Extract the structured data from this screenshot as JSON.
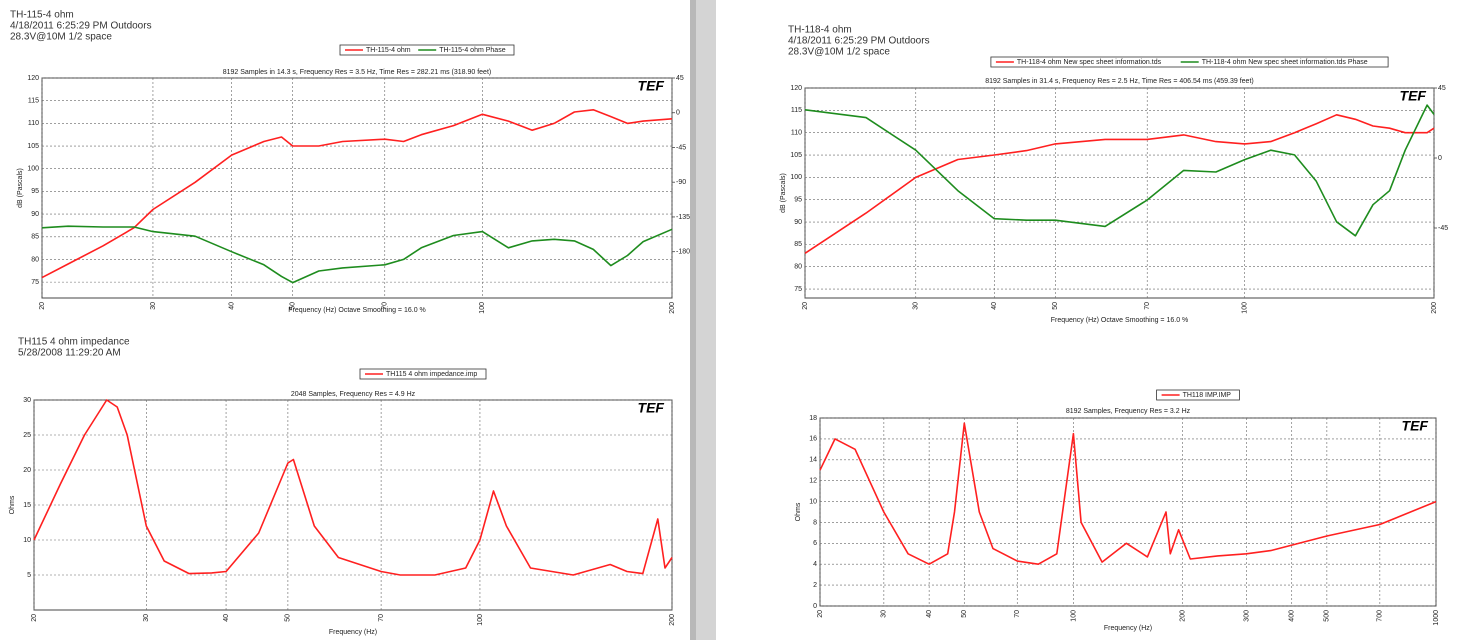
{
  "chart_data": [
    {
      "type": "line",
      "header": [
        "TH-115-4 ohm",
        "4/18/2011 6:25:29 PM    Outdoors",
        "28.3V@10M 1/2 space"
      ],
      "subtitle": "8192 Samples in 14.3 s, Frequency Res = 3.5 Hz, Time Res = 282.21 ms (318.90 feet)",
      "logo": "TEF",
      "xlabel": "Frequency (Hz) Octave Smoothing = 16.0 %",
      "ylabel": "dB (Pascals)",
      "xscale": "log",
      "grid": true,
      "x": [
        20,
        22,
        25,
        28,
        30,
        35,
        40,
        45,
        48,
        50,
        55,
        60,
        70,
        75,
        80,
        90,
        100,
        110,
        120,
        130,
        140,
        150,
        160,
        170,
        180,
        200
      ],
      "xlim": [
        20,
        200
      ],
      "xticks": [
        20,
        30,
        40,
        50,
        70,
        100,
        200
      ],
      "ylim": [
        71.5,
        120
      ],
      "yticks": [
        75,
        80,
        85,
        90,
        95,
        100,
        105,
        110,
        115,
        120
      ],
      "y2lim": [
        -240,
        45
      ],
      "y2ticks": [
        45,
        0,
        -45,
        -90,
        -135,
        -180
      ],
      "series": [
        {
          "name": "TH-115-4 ohm",
          "color": "#ff2020",
          "values": [
            76,
            79,
            83,
            87,
            91,
            97,
            103,
            106,
            107,
            105,
            105,
            106,
            106.5,
            106,
            107.5,
            109.5,
            112,
            110.5,
            108.5,
            110,
            112.5,
            113,
            111.5,
            110,
            110.5,
            111
          ]
        },
        {
          "name": "TH-115-4 ohm Phase",
          "color": "#1e8c1e",
          "axis": "y2",
          "values": [
            -149,
            -147,
            -148,
            -148,
            -154,
            -160,
            -180,
            -197,
            -212,
            -220,
            -205,
            -201,
            -197,
            -190,
            -175,
            -159,
            -154,
            -175,
            -166,
            -164,
            -166,
            -177,
            -198,
            -185,
            -167,
            -151
          ]
        }
      ]
    },
    {
      "type": "line",
      "header": [
        "TH115 4 ohm impedance",
        "  5/28/2008 11:29:20 AM"
      ],
      "subtitle": "2048 Samples, Frequency Res = 4.9 Hz",
      "logo": "TEF",
      "xlabel": "Frequency (Hz)",
      "ylabel": "Ohms",
      "xscale": "log",
      "grid": true,
      "x": [
        20,
        22,
        24,
        26,
        27,
        28,
        30,
        32,
        35,
        38,
        40,
        45,
        50,
        51,
        55,
        60,
        70,
        75,
        85,
        95,
        100,
        105,
        110,
        120,
        140,
        160,
        170,
        180,
        190,
        195,
        200
      ],
      "xlim": [
        20,
        200
      ],
      "xticks": [
        20,
        30,
        40,
        50,
        70,
        100,
        200
      ],
      "ylim": [
        0,
        30
      ],
      "yticks": [
        5,
        10,
        15,
        20,
        25,
        30
      ],
      "series": [
        {
          "name": "TH115 4 ohm impedance.imp",
          "color": "#ff2020",
          "values": [
            10,
            18,
            25,
            30,
            29,
            25,
            12,
            7,
            5.2,
            5.3,
            5.5,
            11,
            21,
            21.5,
            12,
            7.5,
            5.5,
            5,
            5,
            6,
            10,
            17,
            12,
            6,
            5,
            6.5,
            5.5,
            5.2,
            13,
            6,
            7.5
          ]
        }
      ]
    },
    {
      "type": "line",
      "header": [
        "TH-118-4 ohm",
        "4/18/2011 6:25:29 PM    Outdoors",
        "28.3V@10M 1/2 space"
      ],
      "subtitle": "8192 Samples in 31.4 s, Frequency Res = 2.5 Hz, Time Res = 406.54 ms (459.39 feet)",
      "logo": "TEF",
      "xlabel": "Frequency (Hz) Octave Smoothing = 16.0 %",
      "ylabel": "dB (Pascals)",
      "xscale": "log",
      "grid": true,
      "x": [
        20,
        25,
        30,
        35,
        40,
        45,
        50,
        60,
        70,
        80,
        90,
        100,
        110,
        120,
        130,
        140,
        150,
        160,
        170,
        180,
        195,
        200
      ],
      "xlim": [
        20,
        200
      ],
      "xticks": [
        20,
        30,
        40,
        50,
        70,
        100,
        200
      ],
      "ylim": [
        73,
        120
      ],
      "yticks": [
        75,
        80,
        85,
        90,
        95,
        100,
        105,
        110,
        115,
        120
      ],
      "y2lim": [
        -90,
        45
      ],
      "y2ticks": [
        45,
        0,
        -45
      ],
      "series": [
        {
          "name": "TH-118-4 ohm New spec sheet information.tds",
          "color": "#ff2020",
          "values": [
            83,
            92,
            100,
            104,
            105,
            106,
            107.5,
            108.5,
            108.5,
            109.5,
            108,
            107.5,
            108,
            110,
            112,
            114,
            113,
            111.5,
            111,
            110,
            110,
            111
          ]
        },
        {
          "name": "TH-118-4 ohm New spec sheet information.tds Phase",
          "color": "#1e8c1e",
          "axis": "y2",
          "values": [
            31,
            26,
            5,
            -21,
            -39,
            -40,
            -40,
            -44,
            -27,
            -8,
            -9,
            -1,
            5,
            2,
            -15,
            -41,
            -50,
            -30,
            -21,
            5,
            34,
            28
          ]
        }
      ]
    },
    {
      "type": "line",
      "subtitle": "8192 Samples, Frequency Res = 3.2 Hz",
      "logo": "TEF",
      "xlabel": "Frequency (Hz)",
      "ylabel": "Ohms",
      "xscale": "log",
      "grid": true,
      "x": [
        20,
        22,
        25,
        30,
        35,
        40,
        45,
        47,
        50,
        55,
        60,
        70,
        80,
        90,
        100,
        105,
        120,
        140,
        160,
        180,
        185,
        195,
        210,
        250,
        300,
        350,
        500,
        700,
        1000
      ],
      "xlim": [
        20,
        1000
      ],
      "xticks": [
        20,
        30,
        40,
        50,
        70,
        100,
        200,
        300,
        400,
        500,
        700,
        1000
      ],
      "ylim": [
        0,
        18
      ],
      "yticks": [
        0,
        2,
        4,
        6,
        8,
        10,
        12,
        14,
        16,
        18
      ],
      "series": [
        {
          "name": "TH118 IMP.IMP",
          "color": "#ff2020",
          "values": [
            13,
            16,
            15,
            9,
            5,
            4,
            5,
            9,
            17.5,
            9,
            5.5,
            4.3,
            4,
            5,
            16.5,
            8,
            4.2,
            6,
            4.7,
            9,
            5,
            7.3,
            4.5,
            4.8,
            5,
            5.3,
            6.7,
            7.8,
            10
          ]
        }
      ]
    }
  ]
}
